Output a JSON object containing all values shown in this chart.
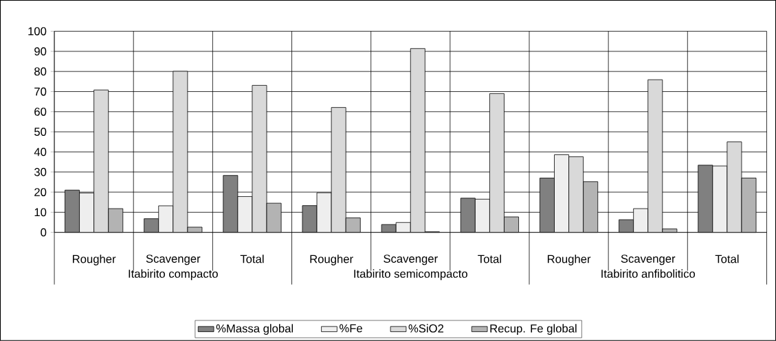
{
  "chart_data": {
    "type": "bar",
    "categories": [
      "Rougher",
      "Scavenger",
      "Total",
      "Rougher",
      "Scavenger",
      "Total",
      "Rougher",
      "Scavenger",
      "Total"
    ],
    "annotations": [
      "Itabirito compacto",
      "Itabirito semicompacto",
      "Itabirito anfibolitico"
    ],
    "series": [
      {
        "name": "%Massa global",
        "color": "#808080",
        "values": [
          21.0,
          6.8,
          28.3,
          13.3,
          3.9,
          17.0,
          27.0,
          6.3,
          33.4
        ]
      },
      {
        "name": "%Fe",
        "color": "#eeeeee",
        "values": [
          19.6,
          13.2,
          17.8,
          19.7,
          4.9,
          16.5,
          38.6,
          11.8,
          33.0
        ]
      },
      {
        "name": "%SiO2",
        "color": "#d9d9d9",
        "values": [
          70.8,
          80.1,
          73.1,
          62.1,
          91.4,
          69.0,
          37.6,
          75.9,
          45.0
        ]
      },
      {
        "name": "Recup. Fe global",
        "color": "#b3b3b3",
        "values": [
          11.8,
          2.6,
          14.5,
          7.2,
          0.3,
          7.7,
          25.2,
          1.7,
          27.0
        ]
      }
    ],
    "ylim": [
      0,
      100
    ],
    "yticks": [
      0,
      10,
      20,
      30,
      40,
      50,
      60,
      70,
      80,
      90,
      100
    ],
    "grid": "y",
    "legend": "bottom"
  }
}
